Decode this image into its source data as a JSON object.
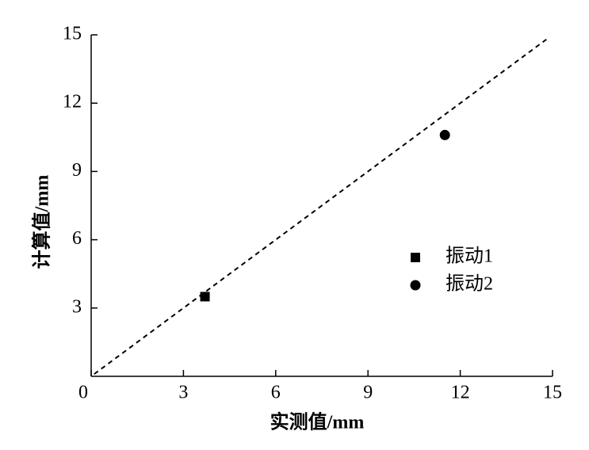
{
  "chart_data": {
    "type": "scatter",
    "x_label": "实测值/mm",
    "y_label": "计算值/mm",
    "xlim": [
      0,
      15
    ],
    "ylim": [
      0,
      15
    ],
    "xticks": [
      0,
      3,
      6,
      9,
      12,
      15
    ],
    "yticks": [
      3,
      6,
      9,
      12,
      15
    ],
    "reference_line": {
      "x": [
        0.1,
        14.8
      ],
      "y": [
        0.1,
        14.8
      ],
      "color": "#000000"
    },
    "series": [
      {
        "name": "振动1",
        "color": "#000000",
        "marker": "square",
        "x": [
          3.7
        ],
        "values": [
          3.5
        ]
      },
      {
        "name": "振动2",
        "color": "#000000",
        "marker": "circle",
        "x": [
          11.5
        ],
        "values": [
          10.6
        ]
      }
    ]
  }
}
